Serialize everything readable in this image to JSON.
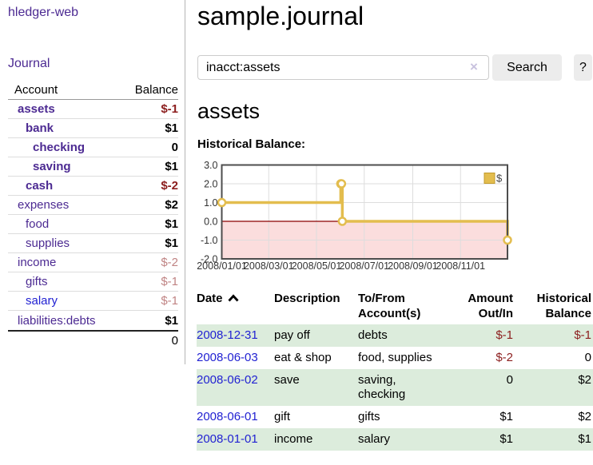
{
  "sidebar": {
    "app_title": "hledger-web",
    "nav": {
      "journal": "Journal"
    },
    "accounts": {
      "col_account": "Account",
      "col_balance": "Balance",
      "rows": [
        {
          "name": "assets",
          "balance": "$-1",
          "row_class": "lvl1 emph",
          "bal_class": "neg-strong"
        },
        {
          "name": "bank",
          "balance": "$1",
          "row_class": "lvl2 emph",
          "bal_class": ""
        },
        {
          "name": "checking",
          "balance": "0",
          "row_class": "lvl3 emph",
          "bal_class": ""
        },
        {
          "name": "saving",
          "balance": "$1",
          "row_class": "lvl3 emph",
          "bal_class": ""
        },
        {
          "name": "cash",
          "balance": "$-2",
          "row_class": "lvl2 emph",
          "bal_class": "neg-strong"
        },
        {
          "name": "expenses",
          "balance": "$2",
          "row_class": "lvl1",
          "bal_class": ""
        },
        {
          "name": "food",
          "balance": "$1",
          "row_class": "lvl2",
          "bal_class": ""
        },
        {
          "name": "supplies",
          "balance": "$1",
          "row_class": "lvl2",
          "bal_class": ""
        },
        {
          "name": "income",
          "balance": "$-2",
          "row_class": "lvl1",
          "bal_class": "neg-soft"
        },
        {
          "name": "gifts",
          "balance": "$-1",
          "row_class": "lvl2",
          "bal_class": "neg-soft"
        },
        {
          "name": "salary",
          "balance": "$-1",
          "row_class": "lvl2 unvisited",
          "bal_class": "neg-soft"
        },
        {
          "name": "liabilities:debts",
          "balance": "$1",
          "row_class": "lvl1",
          "bal_class": ""
        }
      ],
      "total": "0"
    }
  },
  "main": {
    "title": "sample.journal",
    "search": {
      "value": "inacct:assets",
      "clear_label": "×",
      "button": "Search",
      "help": "?"
    },
    "section_heading": "assets",
    "chart_label": "Historical Balance:"
  },
  "chart_data": {
    "type": "line",
    "step": true,
    "title": "Historical Balance",
    "legend": [
      "$"
    ],
    "legend_position": "top-right",
    "x_range": [
      "2008-01-01",
      "2008-12-31"
    ],
    "ylim": [
      -2,
      3
    ],
    "yticks": [
      {
        "v": 3,
        "label": "3.0"
      },
      {
        "v": 2,
        "label": "2.0"
      },
      {
        "v": 1,
        "label": "1.0"
      },
      {
        "v": 0,
        "label": "0.0"
      },
      {
        "v": -1,
        "label": "-1.0"
      },
      {
        "v": -2,
        "label": "-2.0"
      }
    ],
    "xticks": [
      {
        "date": "2008-01-01",
        "label": "2008/01/01"
      },
      {
        "date": "2008-03-01",
        "label": "2008/03/01"
      },
      {
        "date": "2008-05-01",
        "label": "2008/05/01"
      },
      {
        "date": "2008-07-01",
        "label": "2008/07/01"
      },
      {
        "date": "2008-09-01",
        "label": "2008/09/01"
      },
      {
        "date": "2008-11-01",
        "label": "2008/11/01"
      }
    ],
    "points": [
      {
        "date": "2008-01-01",
        "value": 1
      },
      {
        "date": "2008-06-01",
        "value": 2
      },
      {
        "date": "2008-06-02",
        "value": 2
      },
      {
        "date": "2008-06-03",
        "value": 0
      },
      {
        "date": "2008-12-31",
        "value": -1
      }
    ],
    "colors": {
      "line": "#e3bd4e",
      "line_border": "#c29a2b",
      "negative_region": "#fbdddd",
      "zero_line": "#8b0000",
      "grid": "#dddddd",
      "plot_border": "#4d4d4d"
    }
  },
  "register": {
    "sort": {
      "column": "Date",
      "direction": "ascending"
    },
    "headers": [
      "Date",
      "Description",
      "To/From Account(s)",
      "Amount Out/In",
      "Historical Balance"
    ],
    "rows": [
      {
        "date": "2008-12-31",
        "description": "pay off",
        "accounts": "debts",
        "amount": "$-1",
        "balance": "$-1",
        "amount_class": "neg",
        "balance_class": "neg"
      },
      {
        "date": "2008-06-03",
        "description": "eat & shop",
        "accounts": "food, supplies",
        "amount": "$-2",
        "balance": "0",
        "amount_class": "neg",
        "balance_class": ""
      },
      {
        "date": "2008-06-02",
        "description": "save",
        "accounts": "saving, checking",
        "amount": "0",
        "balance": "$2",
        "amount_class": "",
        "balance_class": ""
      },
      {
        "date": "2008-06-01",
        "description": "gift",
        "accounts": "gifts",
        "amount": "$1",
        "balance": "$2",
        "amount_class": "",
        "balance_class": ""
      },
      {
        "date": "2008-01-01",
        "description": "income",
        "accounts": "salary",
        "amount": "$1",
        "balance": "$1",
        "amount_class": "",
        "balance_class": ""
      }
    ]
  }
}
